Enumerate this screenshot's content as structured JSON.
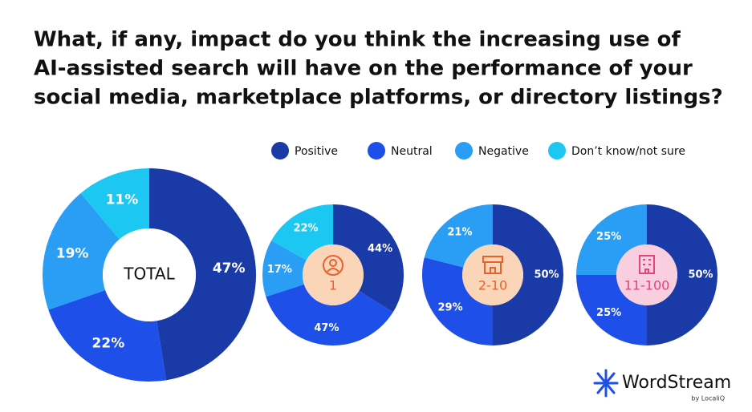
{
  "title_lines": [
    "What, if any, impact do you think the increasing use of",
    "AI-assisted search will have on the performance of your",
    "social media, marketplace platforms, or directory listings?"
  ],
  "logo": {
    "name": "WordStream",
    "byline": "by LocaliQ"
  },
  "chart_data": [
    {
      "type": "donut",
      "center_label": "TOTAL",
      "categories": [
        "Positive",
        "Neutral",
        "Negative",
        "Don’t know/not sure"
      ],
      "values": [
        47,
        22,
        19,
        11
      ],
      "value_labels": [
        "47%",
        "22%",
        "19%",
        "11%"
      ],
      "colors": [
        "#1a3aa8",
        "#1e4fe8",
        "#2a9df4",
        "#1cc8f2"
      ]
    },
    {
      "type": "donut",
      "center_label": "1",
      "categories": [
        "Positive",
        "Neutral",
        "Negative",
        "Don’t know/not sure"
      ],
      "values": [
        44,
        47,
        17,
        22
      ],
      "value_labels": [
        "44%",
        "47%",
        "17%",
        "22%"
      ],
      "colors": [
        "#1a3aa8",
        "#1e4fe8",
        "#2a9df4",
        "#1cc8f2"
      ]
    },
    {
      "type": "donut",
      "center_label": "2-10",
      "categories": [
        "Positive",
        "Neutral",
        "Negative"
      ],
      "values": [
        50,
        29,
        21
      ],
      "value_labels": [
        "50%",
        "29%",
        "21%"
      ],
      "colors": [
        "#1a3aa8",
        "#1e4fe8",
        "#2a9df4"
      ]
    },
    {
      "type": "donut",
      "center_label": "11-100",
      "categories": [
        "Positive",
        "Neutral",
        "Negative"
      ],
      "values": [
        50,
        25,
        25
      ],
      "value_labels": [
        "50%",
        "25%",
        "25%"
      ],
      "colors": [
        "#1a3aa8",
        "#1e4fe8",
        "#2a9df4"
      ]
    }
  ]
}
